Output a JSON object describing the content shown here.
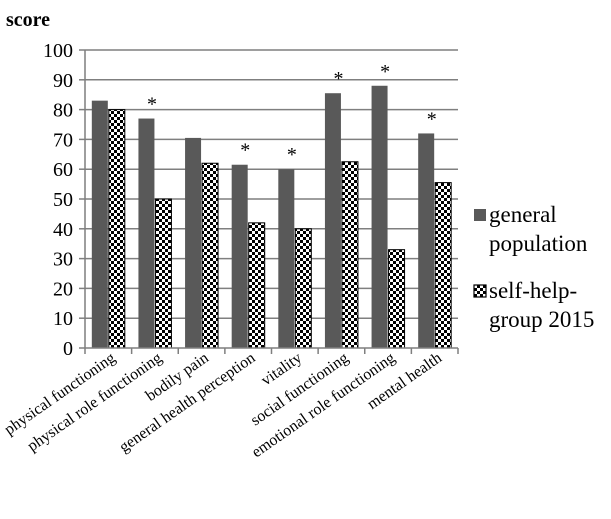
{
  "chart_data": {
    "type": "bar",
    "ylabel": "score",
    "ylim": [
      0,
      100
    ],
    "yticks": [
      0,
      10,
      20,
      30,
      40,
      50,
      60,
      70,
      80,
      90,
      100
    ],
    "grid": true,
    "legend_position": "right",
    "categories": [
      "physical functioning",
      "physical role functioning",
      "bodily pain",
      "general health perception",
      "vitality",
      "social functioning",
      "emotional role functioning",
      "mental health"
    ],
    "series": [
      {
        "name": "general population",
        "legend_lines": [
          "general",
          "population"
        ],
        "color": "#595959",
        "pattern": "solid",
        "values": [
          83,
          77,
          70.5,
          61.5,
          60,
          85.5,
          88,
          72
        ]
      },
      {
        "name": "self-help-group 2015",
        "legend_lines": [
          "self-help-",
          "group 2015"
        ],
        "color": "#000000",
        "pattern": "checker",
        "values": [
          80,
          50,
          62,
          42,
          40,
          62.5,
          33,
          55.5
        ]
      }
    ],
    "annotations": [
      "",
      "*",
      "",
      "*",
      "*",
      "*",
      "*",
      "*"
    ]
  }
}
